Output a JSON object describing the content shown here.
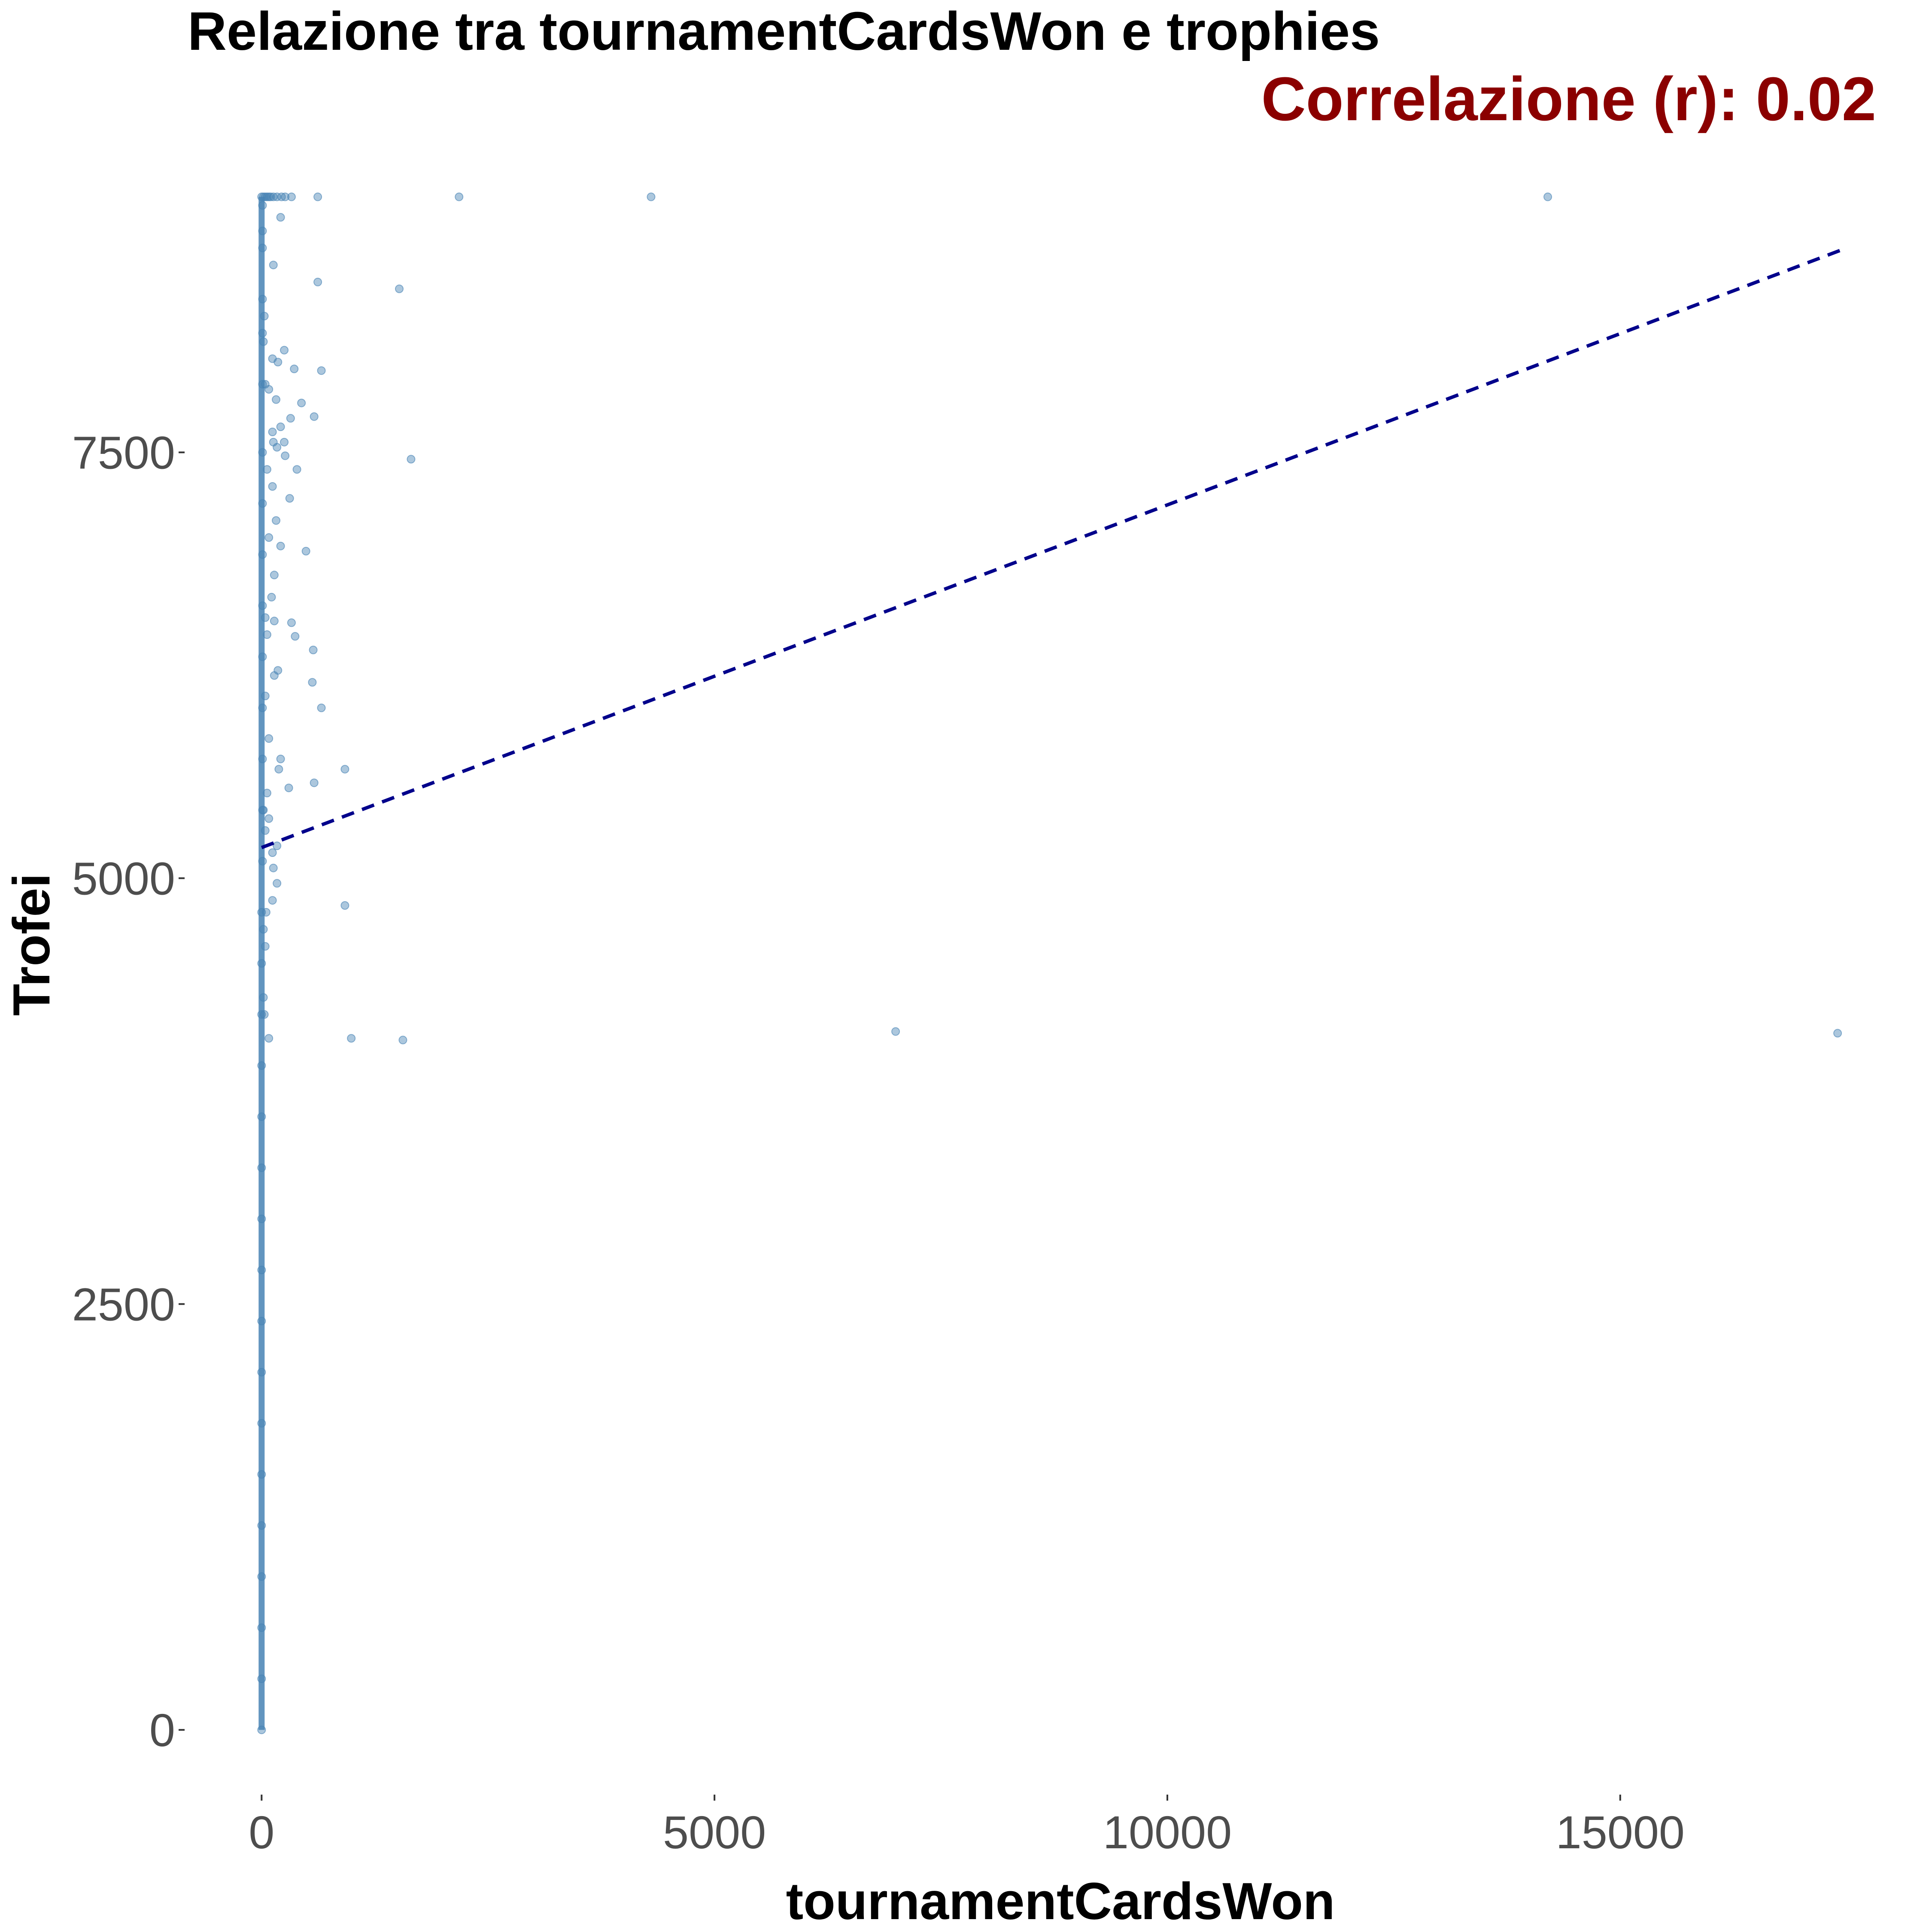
{
  "chart_data": {
    "type": "scatter",
    "title": "Relazione tra tournamentCardsWon e trophies",
    "annotation": "Correlazione (r): 0.02",
    "xlabel": "tournamentCardsWon",
    "ylabel": "Trofei",
    "xlim": [
      -850,
      18300
    ],
    "ylim": [
      -380,
      9450
    ],
    "x_ticks": [
      {
        "value": 0,
        "label": "0"
      },
      {
        "value": 5000,
        "label": "5000"
      },
      {
        "value": 10000,
        "label": "10000"
      },
      {
        "value": 15000,
        "label": "15000"
      }
    ],
    "y_ticks": [
      {
        "value": 0,
        "label": "0"
      },
      {
        "value": 2500,
        "label": "2500"
      },
      {
        "value": 5000,
        "label": "5000"
      },
      {
        "value": 7500,
        "label": "7500"
      }
    ],
    "grid": false,
    "legend": "none",
    "trendline": {
      "x": [
        0,
        17450
      ],
      "y": [
        5180,
        8690
      ],
      "style": "dashed"
    },
    "points": [
      [
        0,
        9000
      ],
      [
        20,
        9000
      ],
      [
        40,
        9000
      ],
      [
        60,
        9000
      ],
      [
        80,
        9000
      ],
      [
        100,
        9000
      ],
      [
        130,
        9000
      ],
      [
        170,
        9000
      ],
      [
        220,
        9000
      ],
      [
        260,
        9000
      ],
      [
        330,
        9000
      ],
      [
        620,
        9000
      ],
      [
        2180,
        9000
      ],
      [
        4300,
        9000
      ],
      [
        14200,
        9000
      ],
      [
        130,
        8600
      ],
      [
        210,
        8880
      ],
      [
        620,
        8500
      ],
      [
        1520,
        8460
      ],
      [
        30,
        8300
      ],
      [
        20,
        8150
      ],
      [
        250,
        8100
      ],
      [
        120,
        8050
      ],
      [
        180,
        8030
      ],
      [
        360,
        7990
      ],
      [
        660,
        7980
      ],
      [
        40,
        7900
      ],
      [
        80,
        7870
      ],
      [
        160,
        7810
      ],
      [
        440,
        7790
      ],
      [
        320,
        7700
      ],
      [
        580,
        7710
      ],
      [
        120,
        7620
      ],
      [
        210,
        7650
      ],
      [
        250,
        7560
      ],
      [
        130,
        7560
      ],
      [
        170,
        7530
      ],
      [
        260,
        7480
      ],
      [
        1650,
        7460
      ],
      [
        60,
        7400
      ],
      [
        390,
        7400
      ],
      [
        120,
        7300
      ],
      [
        310,
        7230
      ],
      [
        160,
        7100
      ],
      [
        80,
        7000
      ],
      [
        210,
        6950
      ],
      [
        490,
        6920
      ],
      [
        140,
        6780
      ],
      [
        110,
        6650
      ],
      [
        40,
        6530
      ],
      [
        140,
        6510
      ],
      [
        330,
        6500
      ],
      [
        60,
        6430
      ],
      [
        370,
        6420
      ],
      [
        570,
        6340
      ],
      [
        180,
        6220
      ],
      [
        140,
        6190
      ],
      [
        560,
        6150
      ],
      [
        40,
        6070
      ],
      [
        660,
        6000
      ],
      [
        80,
        5820
      ],
      [
        210,
        5700
      ],
      [
        190,
        5640
      ],
      [
        920,
        5640
      ],
      [
        580,
        5560
      ],
      [
        300,
        5530
      ],
      [
        60,
        5500
      ],
      [
        20,
        5400
      ],
      [
        80,
        5350
      ],
      [
        40,
        5280
      ],
      [
        170,
        5190
      ],
      [
        120,
        5150
      ],
      [
        130,
        5060
      ],
      [
        170,
        4970
      ],
      [
        120,
        4870
      ],
      [
        920,
        4840
      ],
      [
        50,
        4800
      ],
      [
        20,
        4700
      ],
      [
        40,
        4600
      ],
      [
        20,
        4300
      ],
      [
        30,
        4200
      ],
      [
        80,
        4060
      ],
      [
        990,
        4060
      ],
      [
        1560,
        4050
      ],
      [
        7000,
        4100
      ],
      [
        17400,
        4090
      ],
      [
        10,
        8950
      ],
      [
        10,
        8800
      ],
      [
        10,
        8700
      ],
      [
        10,
        8400
      ],
      [
        10,
        8200
      ],
      [
        10,
        7900
      ],
      [
        10,
        7500
      ],
      [
        10,
        7200
      ],
      [
        10,
        6900
      ],
      [
        10,
        6600
      ],
      [
        10,
        6300
      ],
      [
        10,
        6000
      ],
      [
        10,
        5700
      ],
      [
        10,
        5400
      ],
      [
        10,
        5100
      ],
      [
        0,
        4800
      ],
      [
        0,
        4500
      ],
      [
        0,
        4200
      ],
      [
        0,
        3900
      ],
      [
        0,
        3600
      ],
      [
        0,
        3300
      ],
      [
        0,
        3000
      ],
      [
        0,
        2700
      ],
      [
        0,
        2400
      ],
      [
        0,
        2100
      ],
      [
        0,
        1800
      ],
      [
        0,
        1500
      ],
      [
        0,
        1200
      ],
      [
        0,
        900
      ],
      [
        0,
        600
      ],
      [
        0,
        300
      ],
      [
        0,
        0
      ]
    ]
  },
  "colors": {
    "points": "#4682b4",
    "trendline": "#00008b",
    "annotation": "#8b0000",
    "tick_label": "#4d4d4d"
  }
}
